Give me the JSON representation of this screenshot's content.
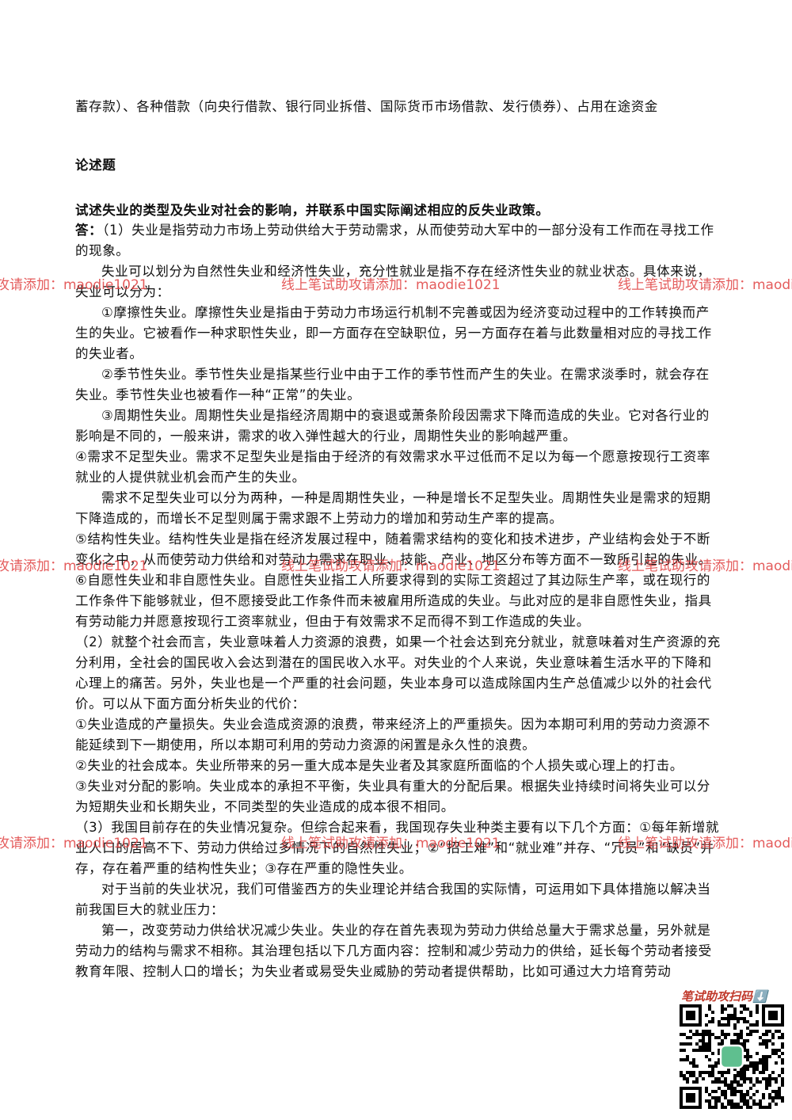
{
  "top_line": "蓄存款）、各种借款（向央行借款、银行同业拆借、国际货币市场借款、发行债券）、占用在途资金",
  "section_title": "论述题",
  "question": "试述失业的类型及失业对社会的影响，并联系中国实际阐述相应的反失业政策。",
  "answer_label": "答：",
  "paragraphs": [
    "（1）失业是指劳动力市场上劳动供给大于劳动需求，从而使劳动大军中的一部分没有工作而在寻找工作的现象。",
    "失业可以划分为自然性失业和经济性失业，充分性就业是指不存在经济性失业的就业状态。具体来说，失业可以分为：",
    "①摩擦性失业。摩擦性失业是指由于劳动力市场运行机制不完善或因为经济变动过程中的工作转换而产生的失业。它被看作一种求职性失业，即一方面存在空缺职位，另一方面存在着与此数量相对应的寻找工作的失业者。",
    "②季节性失业。季节性失业是指某些行业中由于工作的季节性而产生的失业。在需求淡季时，就会存在失业。季节性失业也被看作一种“正常”的失业。",
    "③周期性失业。周期性失业是指经济周期中的衰退或萧条阶段因需求下降而造成的失业。它对各行业的影响是不同的，一般来讲，需求的收入弹性越大的行业，周期性失业的影响越严重。",
    "④需求不足型失业。需求不足型失业是指由于经济的有效需求水平过低而不足以为每一个愿意按现行工资率就业的人提供就业机会而产生的失业。",
    "需求不足型失业可以分为两种，一种是周期性失业，一种是增长不足型失业。周期性失业是需求的短期下降造成的，而增长不足型则属于需求跟不上劳动力的增加和劳动生产率的提高。",
    "⑤结构性失业。结构性失业是指在经济发展过程中，随着需求结构的变化和技术进步，产业结构会处于不断变化之中，从而使劳动力供给和对劳动力需求在职业、技能、产业、地区分布等方面不一致所引起的失业。",
    "⑥自愿性失业和非自愿性失业。自愿性失业指工人所要求得到的实际工资超过了其边际生产率，或在现行的工作条件下能够就业，但不愿接受此工作条件而未被雇用所造成的失业。与此对应的是非自愿性失业，指具有劳动能力并愿意按现行工资率就业，但由于有效需求不足而得不到工作造成的失业。",
    "（2）就整个社会而言，失业意味着人力资源的浪费，如果一个社会达到充分就业，就意味着对生产资源的充分利用，全社会的国民收入会达到潜在的国民收入水平。对失业的个人来说，失业意味着生活水平的下降和心理上的痛苦。另外，失业也是一个严重的社会问题，失业本身可以造成除国内生产总值减少以外的社会代价。可以从下面方面分析失业的代价：",
    "①失业造成的产量损失。失业会造成资源的浪费，带来经济上的严重损失。因为本期可利用的劳动力资源不能延续到下一期使用，所以本期可利用的劳动力资源的闲置是永久性的浪费。",
    "②失业的社会成本。失业所带来的另一重大成本是失业者及其家庭所面临的个人损失或心理上的打击。",
    "③失业对分配的影响。失业成本的承担不平衡，失业具有重大的分配后果。根据失业持续时间将失业可以分为短期失业和长期失业，不同类型的失业造成的成本很不相同。",
    "（3）我国目前存在的失业情况复杂。但综合起来看，我国现存失业种类主要有以下几个方面：①每年新增就业人口的居高不下、劳动力供给过多情况下的自然性失业；②“招工难”和“就业难”并存、“冗员”和“缺员”并存，存在着严重的结构性失业；③存在严重的隐性失业。",
    "对于当前的失业状况，我们可借鉴西方的失业理论并结合我国的实际情，可运用如下具体措施以解决当前我国巨大的就业压力：",
    "第一，改变劳动力供给状况减少失业。失业的存在首先表现为劳动力供给总量大于需求总量，另外就是劳动力的结构与需求不相称。其治理包括以下几方面内容：控制和减少劳动力的供给，延长每个劳动者接受教育年限、控制人口的增长；为失业者或易受失业威胁的劳动者提供帮助，比如可通过大力培育劳动"
  ],
  "watermark": "线上笔试助攻请添加：maodie1021",
  "qr_label": "笔试助攻扫码⬇️"
}
